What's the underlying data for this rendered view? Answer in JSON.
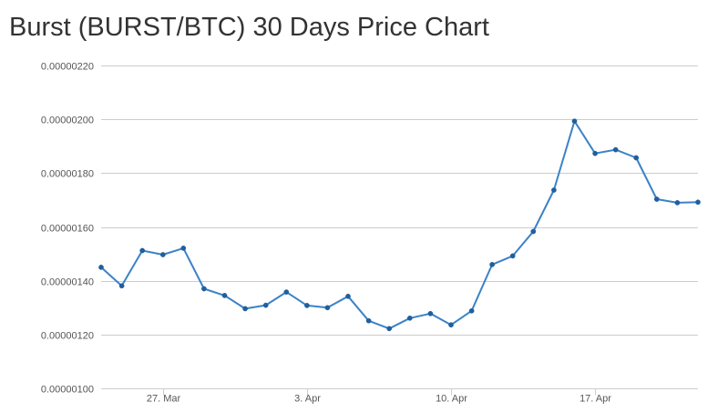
{
  "chart_data": {
    "type": "line",
    "title": "Burst (BURST/BTC) 30 Days Price Chart",
    "xlabel": "",
    "ylabel": "",
    "ylim": [
      1e-06,
      2.2e-06
    ],
    "y_ticks": [
      "0.00000100",
      "0.00000120",
      "0.00000140",
      "0.00000160",
      "0.00000180",
      "0.00000200",
      "0.00000220"
    ],
    "x_ticks": [
      "27. Mar",
      "3. Apr",
      "10. Apr",
      "17. Apr"
    ],
    "x_tick_indices": [
      3,
      10,
      17,
      24
    ],
    "grid": true,
    "legend": "none",
    "colors": {
      "line": "#3b82c8",
      "grid": "#cccccc",
      "axis": "#cccccc"
    },
    "series": [
      {
        "values": [
          1.45e-06,
          1.381e-06,
          1.512e-06,
          1.497e-06,
          1.521e-06,
          1.37e-06,
          1.345e-06,
          1.296e-06,
          1.309e-06,
          1.358e-06,
          1.308e-06,
          1.3e-06,
          1.342e-06,
          1.251e-06,
          1.222e-06,
          1.261e-06,
          1.278e-06,
          1.236e-06,
          1.288e-06,
          1.46e-06,
          1.492e-06,
          1.583e-06,
          1.737e-06,
          1.993e-06,
          1.873e-06,
          1.887e-06,
          1.857e-06,
          1.703e-06,
          1.69e-06,
          1.692e-06
        ]
      }
    ]
  }
}
